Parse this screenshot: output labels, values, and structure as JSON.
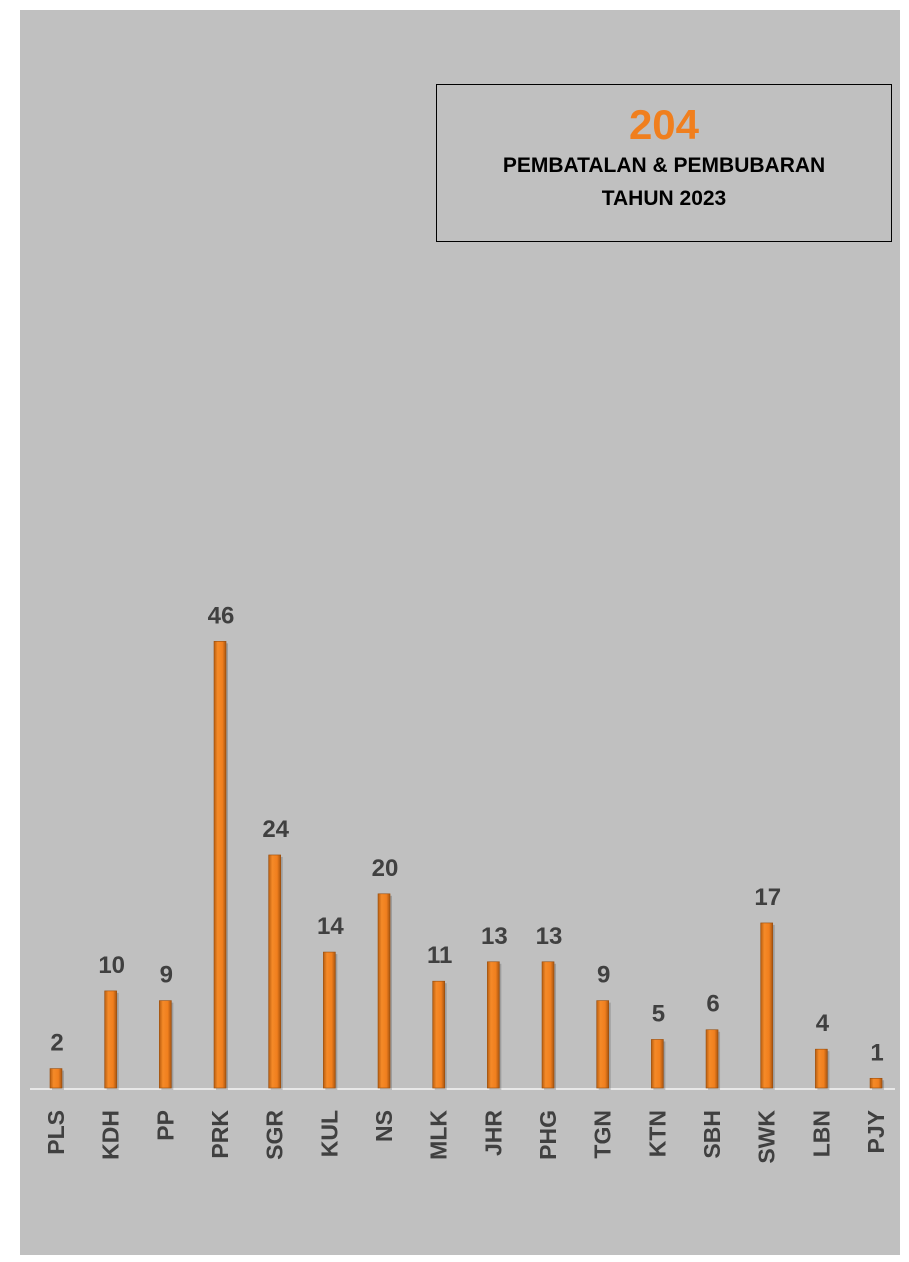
{
  "summary": {
    "total": "204",
    "line1": "PEMBATALAN & PEMBUBARAN",
    "line2": "TAHUN 2023"
  },
  "colors": {
    "bar": "#f07f1e",
    "background": "#c0c0c0",
    "text": "#404040"
  },
  "chart_data": {
    "type": "bar",
    "categories": [
      "PLS",
      "KDH",
      "PP",
      "PRK",
      "SGR",
      "KUL",
      "NS",
      "MLK",
      "JHR",
      "PHG",
      "TGN",
      "KTN",
      "SBH",
      "SWK",
      "LBN",
      "PJY"
    ],
    "values": [
      2,
      10,
      9,
      46,
      24,
      14,
      20,
      11,
      13,
      13,
      9,
      5,
      6,
      17,
      4,
      1
    ],
    "data_labels": true,
    "grid": false,
    "legend": "none",
    "ylim": [
      0,
      48
    ]
  }
}
